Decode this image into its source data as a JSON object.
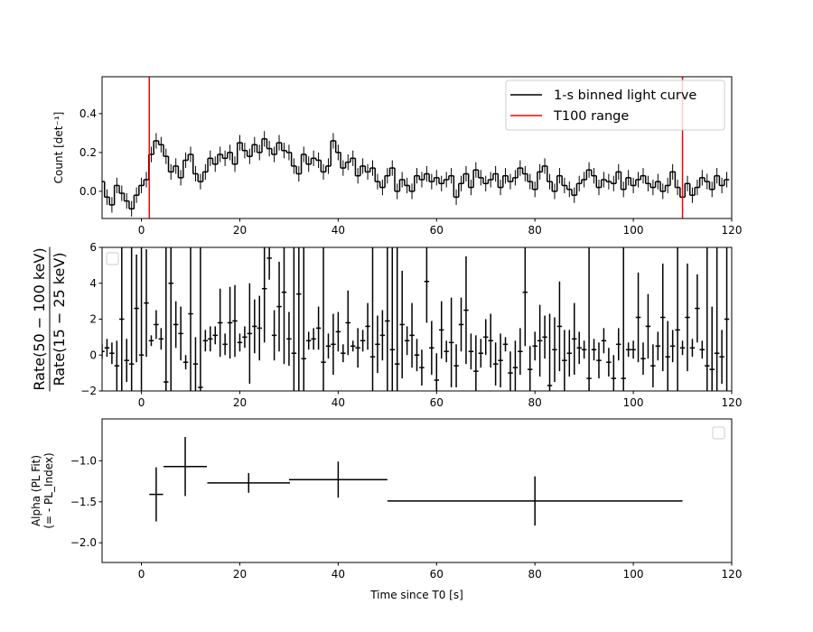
{
  "chart_data": [
    {
      "type": "step",
      "ylabel": "Count [det⁻¹]",
      "xlim": [
        -8,
        120
      ],
      "ylim": [
        -0.14,
        0.59
      ],
      "xticks": [
        0,
        20,
        40,
        60,
        80,
        100,
        120
      ],
      "yticks": [
        {
          "value": 0,
          "label": "0.0"
        },
        0.2,
        0.4
      ],
      "legend": "upper right",
      "series": [
        {
          "name": "1-s binned light curve",
          "color": "#000000",
          "x": [
            -8,
            -7,
            -6,
            -5,
            -4,
            -3,
            -2,
            -1,
            0,
            1,
            2,
            3,
            4,
            5,
            6,
            7,
            8,
            9,
            10,
            11,
            12,
            13,
            14,
            15,
            16,
            17,
            18,
            19,
            20,
            21,
            22,
            23,
            24,
            25,
            26,
            27,
            28,
            29,
            30,
            31,
            32,
            33,
            34,
            35,
            36,
            37,
            38,
            39,
            40,
            41,
            42,
            43,
            44,
            45,
            46,
            47,
            48,
            49,
            50,
            51,
            52,
            53,
            54,
            55,
            56,
            57,
            58,
            59,
            60,
            61,
            62,
            63,
            64,
            65,
            66,
            67,
            68,
            69,
            70,
            71,
            72,
            73,
            74,
            75,
            76,
            77,
            78,
            79,
            80,
            81,
            82,
            83,
            84,
            85,
            86,
            87,
            88,
            89,
            90,
            91,
            92,
            93,
            94,
            95,
            96,
            97,
            98,
            99,
            100,
            101,
            102,
            103,
            104,
            105,
            106,
            107,
            108,
            109,
            110,
            111,
            112,
            113,
            114,
            115,
            116,
            117,
            118,
            119
          ],
          "values": [
            0.05,
            -0.03,
            -0.07,
            0.03,
            -0.01,
            -0.05,
            -0.09,
            -0.02,
            0.03,
            0.06,
            0.19,
            0.26,
            0.24,
            0.18,
            0.1,
            0.13,
            0.07,
            0.16,
            0.19,
            0.09,
            0.05,
            0.1,
            0.17,
            0.14,
            0.19,
            0.17,
            0.2,
            0.14,
            0.25,
            0.21,
            0.18,
            0.24,
            0.2,
            0.27,
            0.22,
            0.19,
            0.25,
            0.21,
            0.2,
            0.13,
            0.09,
            0.19,
            0.14,
            0.17,
            0.16,
            0.1,
            0.13,
            0.26,
            0.2,
            0.12,
            0.15,
            0.17,
            0.08,
            0.13,
            0.1,
            0.12,
            0.05,
            0.02,
            0.08,
            0.12,
            0.0,
            0.06,
            0.03,
            0.0,
            0.08,
            0.06,
            0.09,
            0.05,
            0.07,
            0.04,
            0.06,
            0.08,
            -0.03,
            0.04,
            0.09,
            0.02,
            0.11,
            0.07,
            0.04,
            0.06,
            0.09,
            0.02,
            0.08,
            0.05,
            0.07,
            0.12,
            0.09,
            0.05,
            0.01,
            0.1,
            0.13,
            0.05,
            0.0,
            0.08,
            0.03,
            0.01,
            -0.02,
            0.04,
            0.06,
            0.11,
            0.08,
            0.02,
            0.06,
            0.05,
            0.04,
            0.1,
            0.01,
            0.07,
            0.03,
            0.06,
            0.08,
            0.04,
            0.02,
            0.05,
            0.0,
            0.03,
            0.1,
            0.02,
            -0.03,
            0.04,
            -0.02,
            0.02,
            0.07,
            0.05,
            0.01,
            0.08,
            0.03,
            0.06
          ],
          "yerr": 0.04
        }
      ],
      "vlines": {
        "name": "T100 range",
        "color": "#ff0000",
        "x": [
          1.6,
          110
        ]
      }
    },
    {
      "type": "errorbar",
      "ylabel": [
        "Rate(50 − 100 keV)",
        "Rate(15 − 25 keV)"
      ],
      "xlim": [
        -8,
        120
      ],
      "ylim": [
        -2,
        6
      ],
      "xticks": [
        0,
        20,
        40,
        60,
        80,
        100,
        120
      ],
      "yticks": [
        {
          "value": -2,
          "label": "−2"
        },
        0,
        2,
        4,
        6
      ],
      "series": [
        {
          "color": "#000000",
          "x": [
            -8,
            -7,
            -6,
            -5,
            -4,
            -3,
            -2,
            -1,
            0,
            1,
            2,
            3,
            4,
            5,
            6,
            7,
            8,
            9,
            10,
            11,
            12,
            13,
            14,
            15,
            16,
            17,
            18,
            19,
            20,
            21,
            22,
            23,
            24,
            25,
            26,
            27,
            28,
            29,
            30,
            31,
            32,
            33,
            34,
            35,
            36,
            37,
            38,
            39,
            40,
            41,
            42,
            43,
            44,
            45,
            46,
            47,
            48,
            49,
            50,
            51,
            52,
            53,
            54,
            55,
            56,
            57,
            58,
            59,
            60,
            61,
            62,
            63,
            64,
            65,
            66,
            67,
            68,
            69,
            70,
            71,
            72,
            73,
            74,
            75,
            76,
            77,
            78,
            79,
            80,
            81,
            82,
            83,
            84,
            85,
            86,
            87,
            88,
            89,
            90,
            91,
            92,
            93,
            94,
            95,
            96,
            97,
            98,
            99,
            100,
            101,
            102,
            103,
            104,
            105,
            106,
            107,
            108,
            109,
            110,
            111,
            112,
            113,
            114,
            115,
            116,
            117,
            118,
            119
          ],
          "values": [
            0.2,
            0.4,
            0.1,
            -0.6,
            2.0,
            -0.3,
            -0.5,
            2.6,
            0.0,
            2.9,
            0.8,
            1.7,
            0.9,
            -1.5,
            4.0,
            1.7,
            1.2,
            -0.4,
            2.3,
            -0.5,
            -1.8,
            0.8,
            0.9,
            1.1,
            1.8,
            0.6,
            1.8,
            1.9,
            0.7,
            1.0,
            1.2,
            1.6,
            1.5,
            3.7,
            5.4,
            1.1,
            2.7,
            3.5,
            0.9,
            0.1,
            3.4,
            -0.2,
            0.8,
            0.9,
            1.5,
            -0.4,
            0.5,
            0.6,
            1.3,
            0.1,
            1.8,
            0.5,
            0.4,
            0.8,
            1.6,
            -0.1,
            0.6,
            1.1,
            1.9,
            0.3,
            -0.5,
            1.7,
            0.8,
            1.1,
            0.0,
            -0.7,
            4.1,
            0.4,
            -1.4,
            1.4,
            0.2,
            0.7,
            -0.6,
            1.7,
            2.5,
            0.2,
            -0.9,
            0.1,
            1.0,
            0.8,
            -0.5,
            -0.3,
            0.6,
            -1.0,
            -0.7,
            0.2,
            3.5,
            -0.8,
            0.5,
            0.8,
            1.0,
            -1.7,
            0.3,
            1.6,
            -0.3,
            0.1,
            0.9,
            0.4,
            0.3,
            -1.3,
            0.3,
            -0.3,
            0.8,
            -0.4,
            -1.3,
            0.6,
            -1.3,
            0.3,
            0.3,
            2.1,
            -0.2,
            1.6,
            -0.6,
            0.5,
            2.1,
            -0.1,
            0.5,
            1.4,
            0.4,
            2.1,
            0.4,
            2.6,
            0.3,
            -0.6,
            -0.8,
            0.1,
            -0.1,
            2.0
          ],
          "yerr": [
            0.4,
            0.5,
            0.6,
            1.4,
            8.0,
            1.2,
            8.0,
            3.0,
            8.0,
            3.0,
            0.3,
            0.8,
            0.6,
            8.0,
            8.0,
            1.3,
            1.5,
            0.4,
            8.0,
            1.5,
            8.0,
            0.6,
            0.7,
            0.5,
            1.9,
            0.6,
            2.0,
            2.0,
            0.5,
            0.6,
            2.8,
            1.5,
            1.8,
            3.0,
            1.2,
            1.4,
            2.5,
            4.0,
            1.5,
            8.0,
            6.0,
            8.0,
            0.5,
            0.6,
            1.2,
            8.0,
            0.7,
            1.7,
            1.1,
            0.5,
            1.8,
            0.3,
            1.1,
            0.6,
            1.3,
            8.0,
            1.6,
            1.4,
            8.0,
            8.0,
            8.0,
            3.0,
            0.8,
            1.8,
            0.9,
            1.0,
            2.3,
            1.5,
            1.5,
            1.6,
            0.6,
            2.5,
            1.2,
            1.5,
            3.0,
            1.0,
            2.0,
            0.8,
            1.0,
            1.5,
            1.2,
            1.5,
            0.4,
            1.2,
            1.5,
            1.3,
            3.0,
            1.3,
            0.8,
            2.0,
            1.2,
            4.0,
            1.8,
            2.5,
            1.7,
            1.3,
            2.0,
            0.9,
            0.5,
            8.0,
            0.6,
            1.0,
            0.7,
            0.8,
            1.3,
            0.9,
            8.0,
            0.4,
            0.5,
            2.5,
            0.9,
            1.8,
            1.2,
            0.8,
            3.0,
            2.0,
            0.9,
            8.0,
            0.4,
            3.0,
            0.5,
            1.9,
            0.5,
            8.0,
            3.5,
            8.0,
            1.5,
            4.0
          ],
          "xerr": 0.5
        }
      ]
    },
    {
      "type": "errorbar",
      "ylabel": [
        "Alpha (PL Fit)",
        "(= - PL_Index)"
      ],
      "xlabel": "Time since T0 [s]",
      "xlim": [
        -8,
        120
      ],
      "ylim": [
        -2.24,
        -0.49
      ],
      "xticks": [
        0,
        20,
        40,
        60,
        80,
        100,
        120
      ],
      "yticks": [
        {
          "value": -2,
          "label": "−2.0"
        },
        {
          "value": -1.5,
          "label": "−1.5"
        },
        {
          "value": -1,
          "label": "−1.0"
        }
      ],
      "series": [
        {
          "color": "#000000",
          "x": [
            3,
            8.9,
            21.8,
            40,
            80
          ],
          "values": [
            -1.41,
            -1.07,
            -1.27,
            -1.23,
            -1.49
          ],
          "yerr": [
            0.33,
            0.36,
            0.12,
            0.22,
            0.3
          ],
          "xerr": [
            1.4,
            4.4,
            8.4,
            10,
            30
          ]
        }
      ]
    }
  ]
}
